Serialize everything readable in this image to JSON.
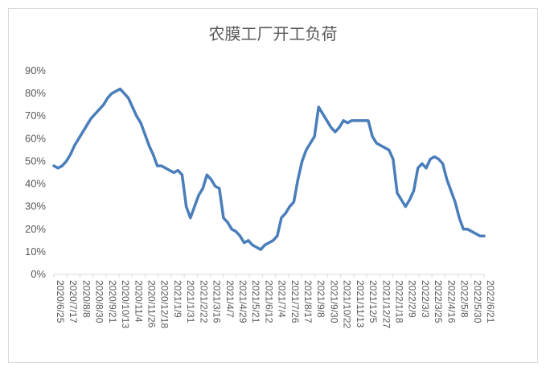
{
  "chart_data": {
    "type": "line",
    "title": "农膜工厂开工负荷",
    "xlabel": "",
    "ylabel": "",
    "ylim": [
      0,
      90
    ],
    "y_tick_labels": [
      "0%",
      "10%",
      "20%",
      "30%",
      "40%",
      "50%",
      "60%",
      "70%",
      "80%",
      "90%"
    ],
    "x_tick_labels": [
      "2020/6/25",
      "2020/7/17",
      "2020/8/8",
      "2020/8/30",
      "2020/9/21",
      "2020/10/13",
      "2020/11/4",
      "2020/11/26",
      "2020/12/18",
      "2021/1/9",
      "2021/1/31",
      "2021/2/22",
      "2021/3/16",
      "2021/4/7",
      "2021/4/29",
      "2021/5/21",
      "2021/6/12",
      "2021/7/4",
      "2021/7/26",
      "2021/8/17",
      "2021/9/8",
      "2021/9/30",
      "2021/10/22",
      "2021/11/13",
      "2021/12/5",
      "2021/12/27",
      "2022/1/18",
      "2022/2/9",
      "2022/3/3",
      "2022/3/25",
      "2022/4/16",
      "2022/5/8",
      "2022/5/30",
      "2022/6/21"
    ],
    "grid": false,
    "legend": "none",
    "line_color": "#4a7ebb",
    "series": [
      {
        "values": [
          48,
          47,
          48,
          50,
          53,
          57,
          60,
          63,
          66,
          69,
          71,
          73,
          75,
          78,
          80,
          81,
          82,
          80,
          78,
          74,
          70,
          67,
          62,
          57,
          53,
          48,
          48,
          47,
          46,
          45,
          46,
          44,
          30,
          25,
          30,
          35,
          38,
          44,
          42,
          39,
          38,
          25,
          23,
          20,
          19,
          17,
          14,
          15,
          13,
          12,
          11,
          13,
          14,
          15,
          17,
          25,
          27,
          30,
          32,
          42,
          50,
          55,
          58,
          61,
          74,
          71,
          68,
          65,
          63,
          65,
          68,
          67,
          68,
          68,
          68,
          68,
          68,
          61,
          58,
          57,
          56,
          55,
          51,
          36,
          33,
          30,
          33,
          37,
          47,
          49,
          47,
          51,
          52,
          51,
          49,
          42,
          37,
          32,
          25,
          20,
          20,
          19,
          18,
          17,
          17
        ]
      }
    ]
  }
}
